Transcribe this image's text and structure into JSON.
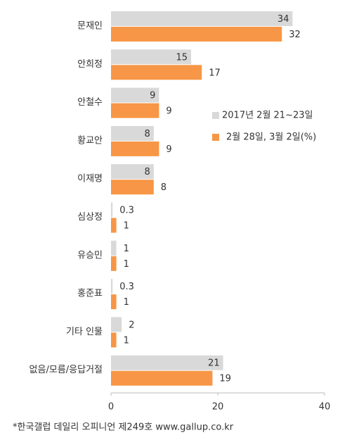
{
  "chart_data": {
    "type": "barh",
    "categories": [
      "문재인",
      "안희정",
      "안철수",
      "황교안",
      "이재명",
      "심상정",
      "유승민",
      "홍준표",
      "기타 인물",
      "없음/모름/응답거절"
    ],
    "series": [
      {
        "name": "2017년 2월 21~23일",
        "color": "#d9d9d9",
        "values": [
          34,
          15,
          9,
          8,
          8,
          0.3,
          1,
          0.3,
          2,
          21
        ]
      },
      {
        "name": "2월 28일, 3월 2일(%)",
        "color": "#f79646",
        "values": [
          32,
          17,
          9,
          9,
          8,
          1,
          1,
          1,
          1,
          19
        ]
      }
    ],
    "xlim": [
      0,
      40
    ],
    "xticks": [
      0,
      20,
      40
    ],
    "footnote": "*한국갤럽 데일리 오피니언 제249호 www.gallup.co.kr"
  }
}
